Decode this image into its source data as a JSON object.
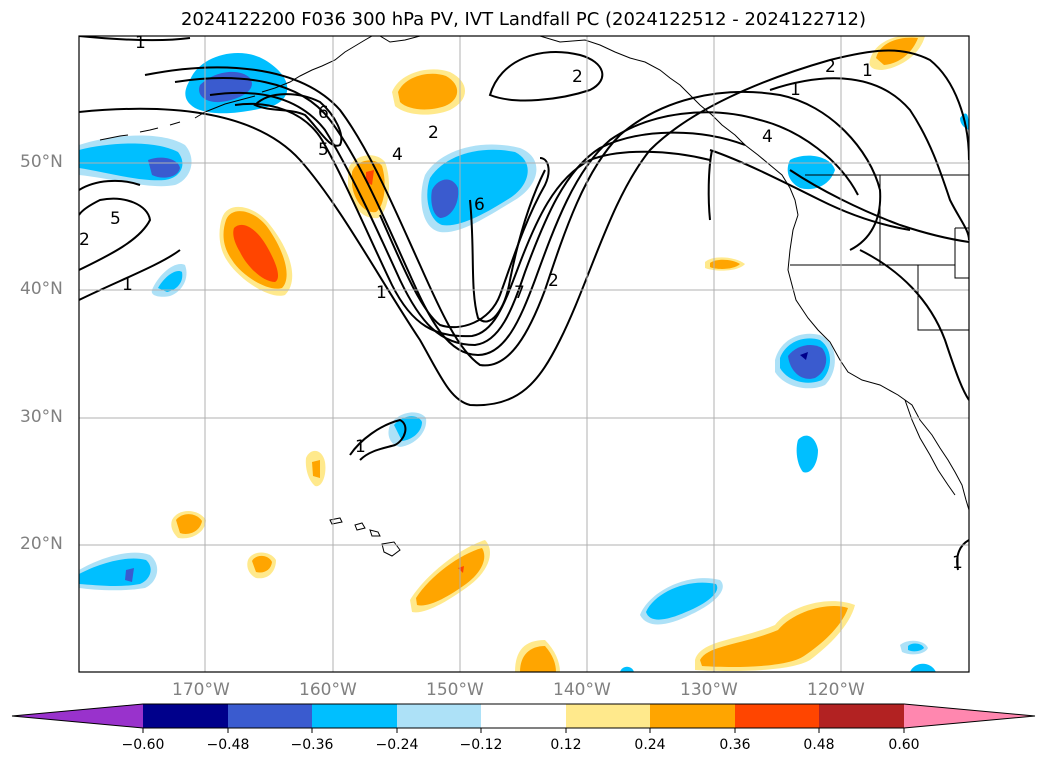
{
  "title": "2024122200 F036 300 hPa PV, IVT Landfall PC (2024122512 - 2024122712)",
  "map": {
    "projection": "PlateCarree",
    "lon_range": [
      -180,
      -110
    ],
    "lat_range": [
      10,
      60
    ],
    "gridlines": true,
    "lat_labels": [
      "50°N",
      "40°N",
      "30°N",
      "20°N"
    ],
    "lon_labels": [
      "170°W",
      "160°W",
      "150°W",
      "140°W",
      "130°W",
      "120°W"
    ],
    "contour_field": "300 hPa PV",
    "contour_labels": [
      "1",
      "2",
      "4",
      "5",
      "6",
      "7",
      "1",
      "1",
      "2",
      "2",
      "6",
      "5",
      "4",
      "2",
      "1",
      "1",
      "1",
      "2",
      "1"
    ],
    "shaded_field": "IVT Landfall PC"
  },
  "colorbar": {
    "extend": "both",
    "tick_labels": [
      "−0.60",
      "−0.48",
      "−0.36",
      "−0.24",
      "−0.12",
      "0.12",
      "0.24",
      "0.36",
      "0.48",
      "0.60"
    ],
    "colors": [
      "#9932CC",
      "#00008B",
      "#3A5BCF",
      "#00BFFF",
      "#ADE1F7",
      "#FFFFFF",
      "#FFE98C",
      "#FFA500",
      "#FF4500",
      "#B22222",
      "#FF87AF"
    ]
  }
}
